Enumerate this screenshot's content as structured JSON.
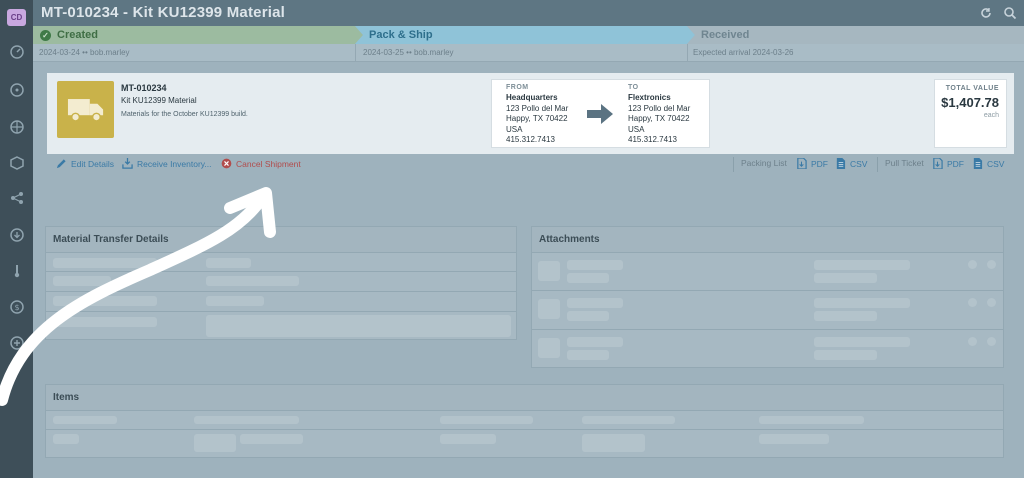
{
  "app": {
    "avatar": "CD",
    "title": "MT-010234 - Kit KU12399 Material"
  },
  "steps": [
    {
      "label": "Created",
      "meta": "2024-03-24 •• bob.marley",
      "state": "done"
    },
    {
      "label": "Pack & Ship",
      "meta": "2024-03-25 •• bob.marley",
      "state": "current"
    },
    {
      "label": "Received",
      "meta": "Expected arrival 2024-03-26",
      "state": "pending"
    }
  ],
  "transfer": {
    "id": "MT-010234",
    "name": "Kit KU12399 Material",
    "description": "Materials for the October KU12399 build.",
    "from": {
      "label": "FROM",
      "name": "Headquarters",
      "street": "123 Pollo del Mar",
      "city": "Happy, TX 70422",
      "country": "USA",
      "phone": "415.312.7413"
    },
    "to": {
      "label": "TO",
      "name": "Flextronics",
      "street": "123 Pollo del Mar",
      "city": "Happy, TX 70422",
      "country": "USA",
      "phone": "415.312.7413"
    },
    "total": {
      "label": "TOTAL VALUE",
      "value": "$1,407.78",
      "unit": "each"
    }
  },
  "actions": {
    "edit": "Edit Details",
    "receive": "Receive Inventory...",
    "cancel": "Cancel Shipment",
    "packing_list": "Packing List",
    "pull_ticket": "Pull Ticket",
    "pdf": "PDF",
    "csv": "CSV"
  },
  "cards": {
    "details": "Material Transfer Details",
    "attachments": "Attachments",
    "items": "Items"
  },
  "colors": {
    "accent": "#3a7aa6",
    "danger": "#b14d4d",
    "success": "#3f7a47",
    "truck": "#c9b24a"
  }
}
